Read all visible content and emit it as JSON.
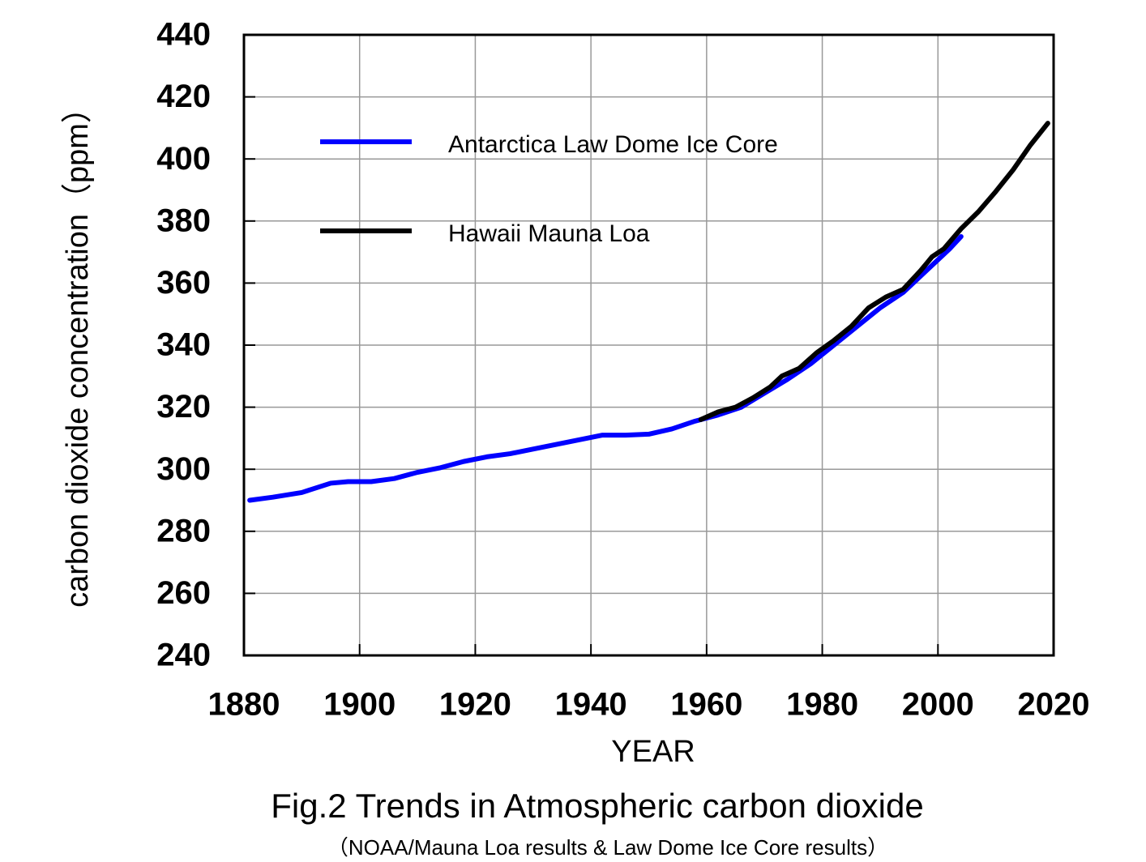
{
  "chart_data": {
    "type": "line",
    "title": "Fig.2 Trends in Atmospheric carbon dioxide",
    "subtitle": "（NOAA/Mauna Loa results & Law Dome Ice Core results）",
    "x_label": "YEAR",
    "y_label": "carbon dioxide concentration（ppm）",
    "xlim": [
      1880,
      2020
    ],
    "xticks": [
      1880,
      1900,
      1920,
      1940,
      1960,
      1980,
      2000,
      2020
    ],
    "ylim": [
      240,
      440
    ],
    "yticks": [
      240,
      260,
      280,
      300,
      320,
      340,
      360,
      380,
      400,
      420,
      440
    ],
    "grid": true,
    "legend": "upper left",
    "series": [
      {
        "name": "Antarctica Law Dome Ice Core",
        "color": "#0000ff",
        "x": [
          1881,
          1885,
          1890,
          1895,
          1898,
          1902,
          1906,
          1910,
          1914,
          1918,
          1922,
          1926,
          1930,
          1934,
          1938,
          1942,
          1946,
          1950,
          1954,
          1958,
          1962,
          1966,
          1970,
          1974,
          1978,
          1982,
          1986,
          1990,
          1994,
          1998,
          2002,
          2004
        ],
        "values": [
          290,
          291,
          292.5,
          295.5,
          296,
          296,
          297,
          299,
          300.5,
          302.5,
          304,
          305,
          306.5,
          308,
          309.5,
          311,
          311,
          311.3,
          313,
          315.5,
          317.5,
          320,
          324.5,
          329,
          334,
          340,
          346,
          352,
          357,
          364,
          371,
          375
        ]
      },
      {
        "name": "Hawaii Mauna Loa",
        "color": "#000000",
        "x": [
          1959,
          1962,
          1965,
          1968,
          1971,
          1973,
          1976,
          1979,
          1982,
          1985,
          1988,
          1991,
          1994,
          1997,
          1999,
          2001,
          2004,
          2007,
          2010,
          2013,
          2016,
          2019
        ],
        "values": [
          316,
          318.5,
          320,
          323,
          326.5,
          330,
          332.5,
          337.5,
          341.5,
          346,
          352,
          355.5,
          358,
          364,
          368.5,
          371,
          377.5,
          383,
          389.5,
          396.5,
          404.5,
          411.5
        ]
      }
    ]
  }
}
